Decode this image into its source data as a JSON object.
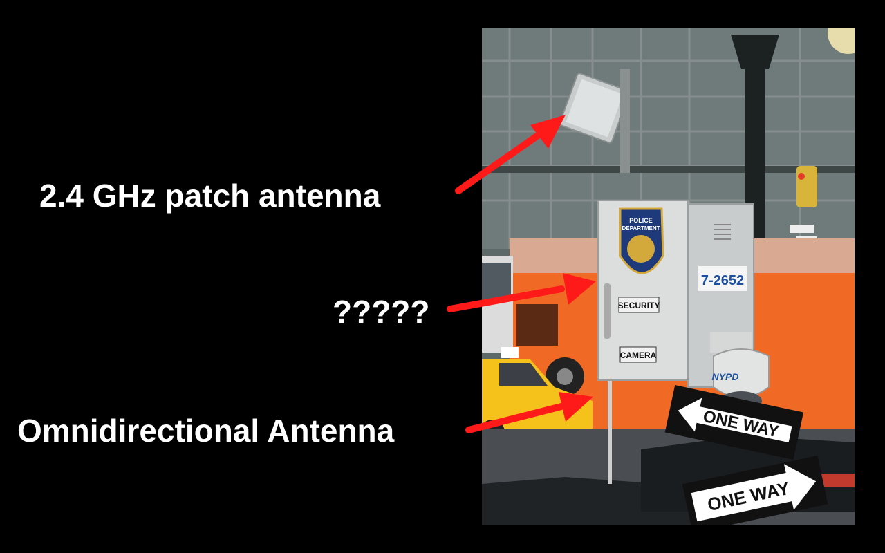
{
  "labels": {
    "patch_antenna": "2.4 GHz patch antenna",
    "unknown": "?????",
    "omni_antenna": "Omnidirectional Antenna"
  },
  "photo_text": {
    "police_line1": "POLICE",
    "police_line2": "DEPARTMENT",
    "box_number": "7-2652",
    "security": "SECURITY",
    "camera": "CAMERA",
    "nypd": "NYPD",
    "one_way_top": "ONE WAY",
    "one_way_bottom": "ONE WAY"
  },
  "colors": {
    "background": "#000000",
    "text": "#ffffff",
    "arrow": "#ff1a1a",
    "bus": "#f06a25",
    "taxi": "#f5c21b"
  }
}
